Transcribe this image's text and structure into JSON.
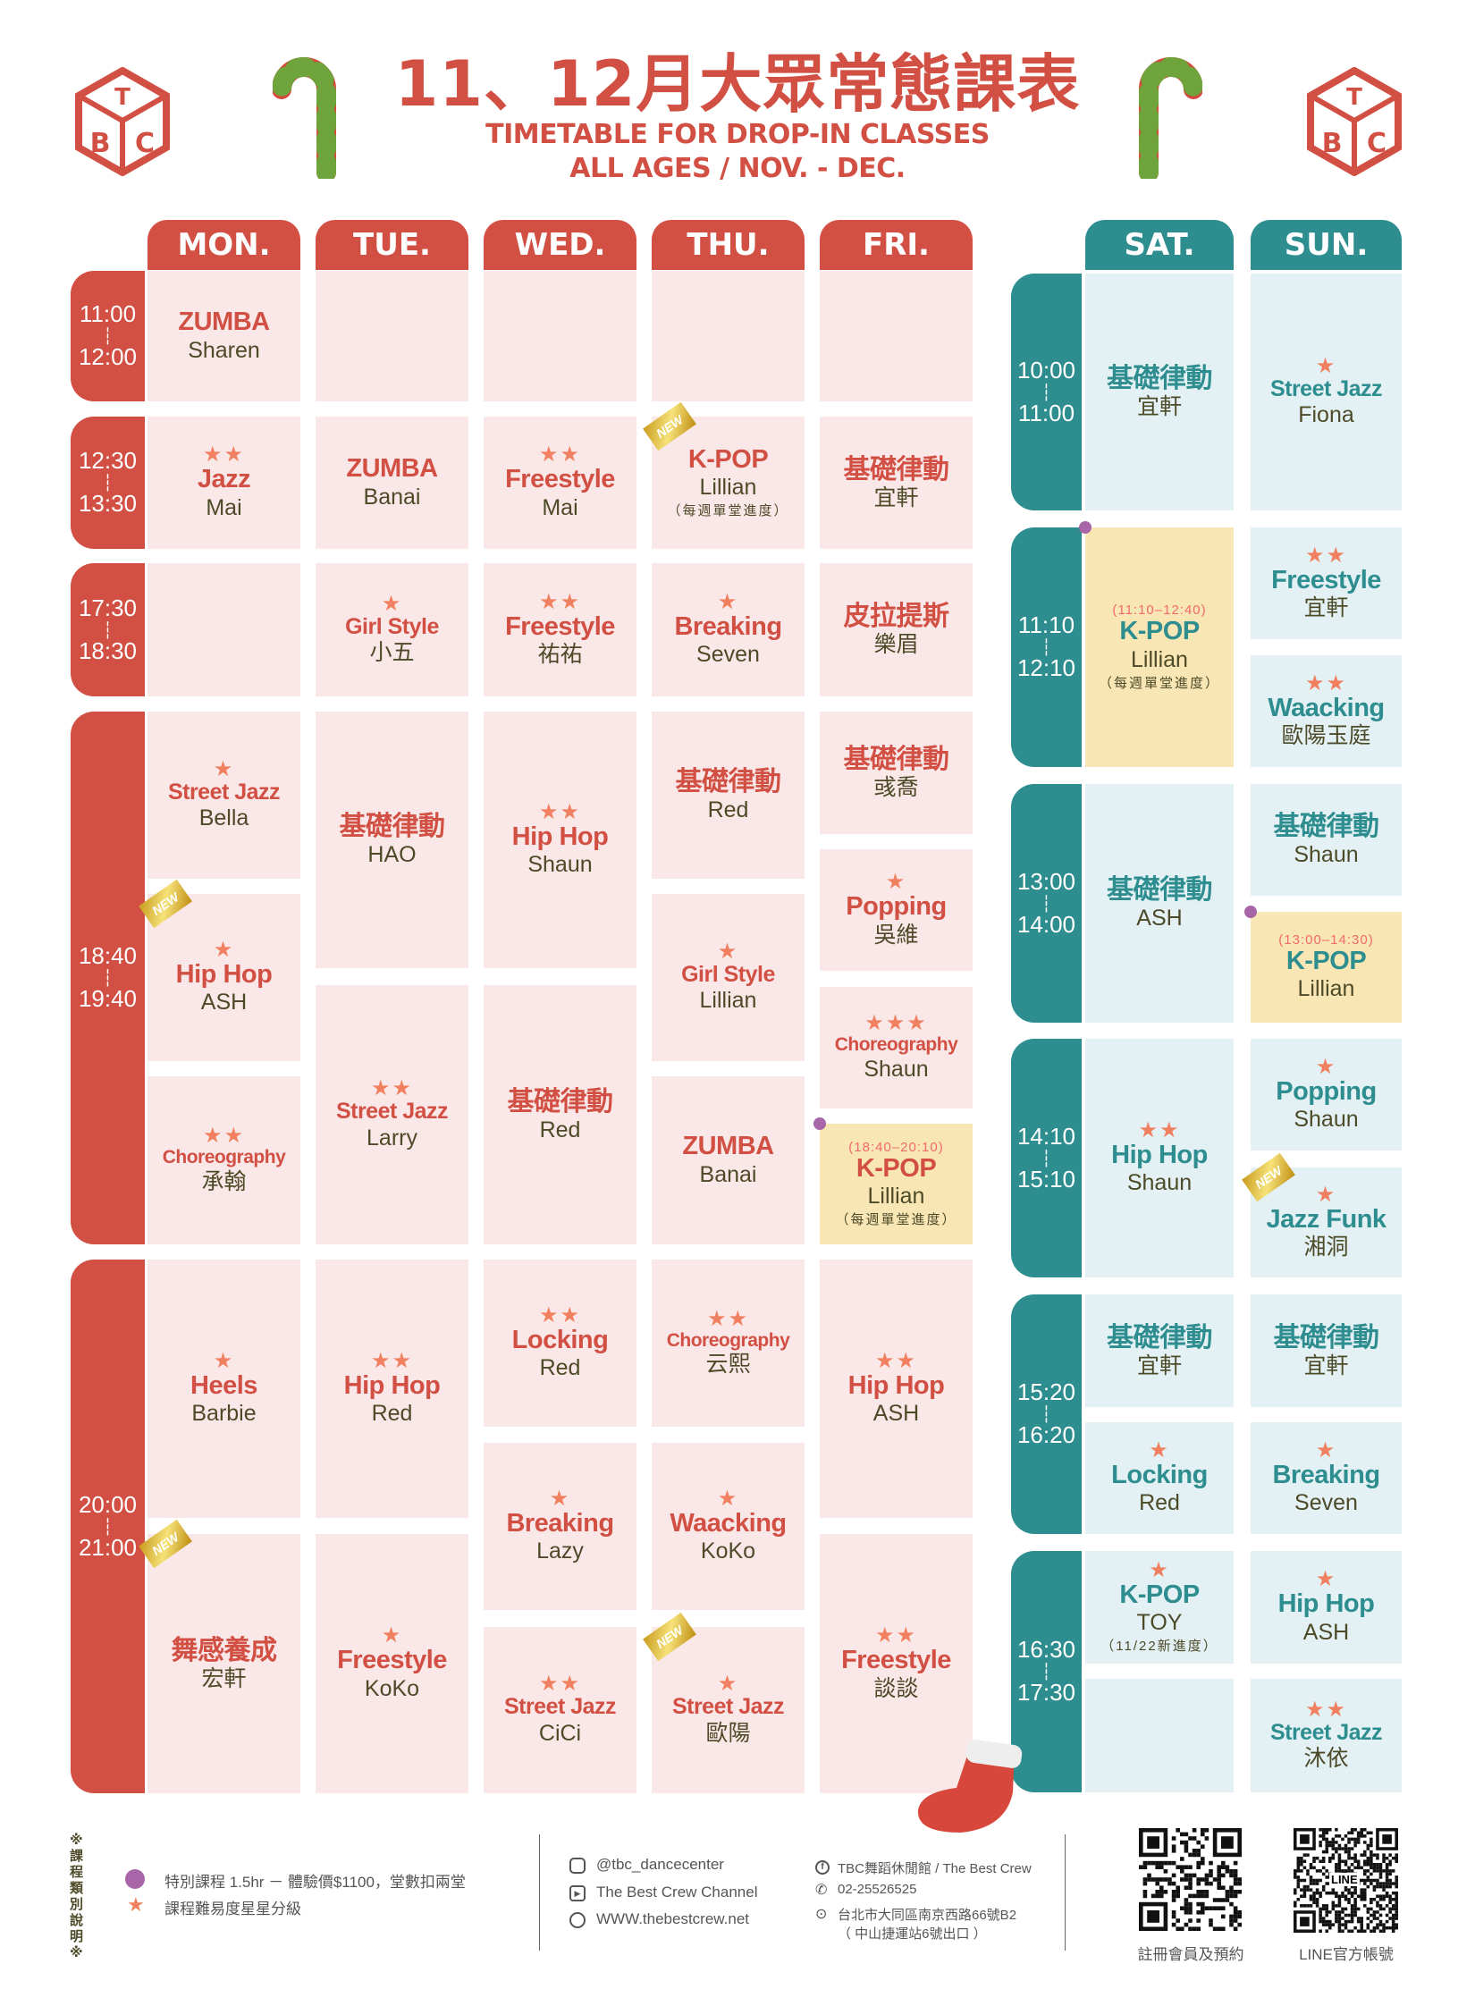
{
  "header": {
    "title": "11、12月大眾常態課表",
    "subtitle_line1": "TIMETABLE FOR DROP-IN CLASSES",
    "subtitle_line2": "ALL AGES / NOV. - DEC.",
    "logo_text": "TBC"
  },
  "colors": {
    "weekday": "#d24f43",
    "weekday_cell": "#fae8e8",
    "weekend": "#2e8d8f",
    "weekend_cell": "#e3f1f5",
    "special_cell": "#f9e6b5",
    "star": "#f0805f",
    "special_dot": "#a865a8"
  },
  "days": [
    "MON.",
    "TUE.",
    "WED.",
    "THU.",
    "FRI.",
    "SAT.",
    "SUN."
  ],
  "weekday_times": [
    {
      "start": "11:00",
      "end": "12:00"
    },
    {
      "start": "12:30",
      "end": "13:30"
    },
    {
      "start": "17:30",
      "end": "18:30"
    },
    {
      "start": "18:40",
      "end": "19:40"
    },
    {
      "start": "20:00",
      "end": "21:00"
    }
  ],
  "weekend_times": [
    {
      "start": "10:00",
      "end": "11:00"
    },
    {
      "start": "11:10",
      "end": "12:10"
    },
    {
      "start": "13:00",
      "end": "14:00"
    },
    {
      "start": "14:10",
      "end": "15:10"
    },
    {
      "start": "15:20",
      "end": "16:20"
    },
    {
      "start": "16:30",
      "end": "17:30"
    }
  ],
  "new_label": "NEW",
  "cells": [
    {
      "day": "MON.",
      "title": "ZUMBA",
      "teacher": "Sharen",
      "stars": 0
    },
    {
      "day": "MON.",
      "title": "Jazz",
      "teacher": "Mai",
      "stars": 2
    },
    {
      "day": "MON.",
      "title": "",
      "teacher": "",
      "stars": 0
    },
    {
      "day": "MON.",
      "title": "Street Jazz",
      "teacher": "Bella",
      "stars": 1
    },
    {
      "day": "MON.",
      "title": "Hip Hop",
      "teacher": "ASH",
      "stars": 1,
      "new": true
    },
    {
      "day": "MON.",
      "title": "Choreography",
      "teacher": "承翰",
      "stars": 2
    },
    {
      "day": "MON.",
      "title": "Heels",
      "teacher": "Barbie",
      "stars": 1
    },
    {
      "day": "MON.",
      "title": "舞感養成",
      "teacher": "宏軒",
      "stars": 0,
      "new": true
    },
    {
      "day": "TUE.",
      "title": "",
      "teacher": "",
      "stars": 0
    },
    {
      "day": "TUE.",
      "title": "ZUMBA",
      "teacher": "Banai",
      "stars": 0
    },
    {
      "day": "TUE.",
      "title": "Girl Style",
      "teacher": "小五",
      "stars": 1
    },
    {
      "day": "TUE.",
      "title": "基礎律動",
      "teacher": "HAO",
      "stars": 0
    },
    {
      "day": "TUE.",
      "title": "Street Jazz",
      "teacher": "Larry",
      "stars": 2
    },
    {
      "day": "TUE.",
      "title": "Hip Hop",
      "teacher": "Red",
      "stars": 2
    },
    {
      "day": "TUE.",
      "title": "Freestyle",
      "teacher": "KoKo",
      "stars": 1
    },
    {
      "day": "WED.",
      "title": "",
      "teacher": "",
      "stars": 0
    },
    {
      "day": "WED.",
      "title": "Freestyle",
      "teacher": "Mai",
      "stars": 2
    },
    {
      "day": "WED.",
      "title": "Freestyle",
      "teacher": "祐祐",
      "stars": 2
    },
    {
      "day": "WED.",
      "title": "Hip Hop",
      "teacher": "Shaun",
      "stars": 2
    },
    {
      "day": "WED.",
      "title": "基礎律動",
      "teacher": "Red",
      "stars": 0
    },
    {
      "day": "WED.",
      "title": "Locking",
      "teacher": "Red",
      "stars": 2
    },
    {
      "day": "WED.",
      "title": "Breaking",
      "teacher": "Lazy",
      "stars": 1
    },
    {
      "day": "WED.",
      "title": "Street Jazz",
      "teacher": "CiCi",
      "stars": 2
    },
    {
      "day": "THU.",
      "title": "",
      "teacher": "",
      "stars": 0
    },
    {
      "day": "THU.",
      "title": "K-POP",
      "teacher": "Lillian",
      "note": "（每週單堂進度）",
      "stars": 0,
      "new": true
    },
    {
      "day": "THU.",
      "title": "Breaking",
      "teacher": "Seven",
      "stars": 1
    },
    {
      "day": "THU.",
      "title": "基礎律動",
      "teacher": "Red",
      "stars": 0
    },
    {
      "day": "THU.",
      "title": "Girl Style",
      "teacher": "Lillian",
      "stars": 1
    },
    {
      "day": "THU.",
      "title": "ZUMBA",
      "teacher": "Banai",
      "stars": 0
    },
    {
      "day": "THU.",
      "title": "Choreography",
      "teacher": "云熙",
      "stars": 2
    },
    {
      "day": "THU.",
      "title": "Waacking",
      "teacher": "KoKo",
      "stars": 1
    },
    {
      "day": "THU.",
      "title": "Street Jazz",
      "teacher": "歐陽",
      "stars": 1,
      "new": true
    },
    {
      "day": "FRI.",
      "title": "",
      "teacher": "",
      "stars": 0
    },
    {
      "day": "FRI.",
      "title": "基礎律動",
      "teacher": "宜軒",
      "stars": 0
    },
    {
      "day": "FRI.",
      "title": "皮拉提斯",
      "teacher": "樂眉",
      "stars": 0
    },
    {
      "day": "FRI.",
      "title": "基礎律動",
      "teacher": "彧喬",
      "stars": 0
    },
    {
      "day": "FRI.",
      "title": "Popping",
      "teacher": "吳維",
      "stars": 1
    },
    {
      "day": "FRI.",
      "title": "Choreography",
      "teacher": "Shaun",
      "stars": 3
    },
    {
      "day": "FRI.",
      "title": "K-POP",
      "teacher": "Lillian",
      "note": "（每週單堂進度）",
      "time_note": "(18:40–20:10)",
      "stars": 0,
      "special": true
    },
    {
      "day": "FRI.",
      "title": "Hip Hop",
      "teacher": "ASH",
      "stars": 2
    },
    {
      "day": "FRI.",
      "title": "Freestyle",
      "teacher": "談談",
      "stars": 2
    },
    {
      "day": "SAT.",
      "title": "基礎律動",
      "teacher": "宜軒",
      "stars": 0
    },
    {
      "day": "SAT.",
      "title": "K-POP",
      "teacher": "Lillian",
      "note": "（每週單堂進度）",
      "time_note": "(11:10–12:40)",
      "stars": 0,
      "special": true
    },
    {
      "day": "SAT.",
      "title": "基礎律動",
      "teacher": "ASH",
      "stars": 0
    },
    {
      "day": "SAT.",
      "title": "Hip Hop",
      "teacher": "Shaun",
      "stars": 2
    },
    {
      "day": "SAT.",
      "title": "基礎律動",
      "teacher": "宜軒",
      "stars": 0
    },
    {
      "day": "SAT.",
      "title": "Locking",
      "teacher": "Red",
      "stars": 1
    },
    {
      "day": "SAT.",
      "title": "K-POP",
      "teacher": "TOY",
      "note": "（11/22新進度）",
      "stars": 1
    },
    {
      "day": "SAT.",
      "title": "",
      "teacher": "",
      "stars": 0
    },
    {
      "day": "SUN.",
      "title": "Street Jazz",
      "teacher": "Fiona",
      "stars": 1
    },
    {
      "day": "SUN.",
      "title": "Freestyle",
      "teacher": "宜軒",
      "stars": 2
    },
    {
      "day": "SUN.",
      "title": "Waacking",
      "teacher": "歐陽玉庭",
      "stars": 2
    },
    {
      "day": "SUN.",
      "title": "基礎律動",
      "teacher": "Shaun",
      "stars": 0
    },
    {
      "day": "SUN.",
      "title": "K-POP",
      "teacher": "Lillian",
      "time_note": "(13:00–14:30)",
      "stars": 0,
      "special": true
    },
    {
      "day": "SUN.",
      "title": "Popping",
      "teacher": "Shaun",
      "stars": 1
    },
    {
      "day": "SUN.",
      "title": "Jazz Funk",
      "teacher": "湘洞",
      "stars": 1,
      "new": true
    },
    {
      "day": "SUN.",
      "title": "基礎律動",
      "teacher": "宜軒",
      "stars": 0
    },
    {
      "day": "SUN.",
      "title": "Breaking",
      "teacher": "Seven",
      "stars": 1
    },
    {
      "day": "SUN.",
      "title": "Hip Hop",
      "teacher": "ASH",
      "stars": 1
    },
    {
      "day": "SUN.",
      "title": "Street Jazz",
      "teacher": "沐依",
      "stars": 2
    }
  ],
  "legend": {
    "heading": "※課程類別說明※",
    "special": "特別課程 1.5hr － 體驗價$1100，堂數扣兩堂",
    "stars": "課程難易度星星分級"
  },
  "contact": {
    "instagram": "@tbc_dancecenter",
    "youtube": "The Best Crew Channel",
    "website": "WWW.thebestcrew.net",
    "facebook": "TBC舞蹈休閒館 / The Best Crew",
    "phone": "02-25526525",
    "address": "台北市大同區南京西路66號B2",
    "address_note": "（ 中山捷運站6號出口 ）"
  },
  "qr": {
    "member_label": "註冊會員及預約",
    "line_label": "LINE官方帳號",
    "line_text": "LINE"
  }
}
